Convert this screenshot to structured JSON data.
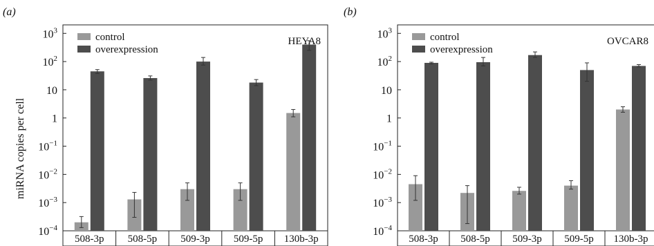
{
  "ylabel": "miRNA copies per cell",
  "colors": {
    "control": "#999999",
    "overexpression": "#4d4d4d",
    "axis": "#222222",
    "errorbar": "#333333"
  },
  "chart_data": [
    {
      "type": "bar",
      "panel_label": "(a)",
      "cell_line": "HEYA8",
      "title": "",
      "xlabel": "",
      "ylabel": "miRNA copies per cell",
      "yscale": "log",
      "ylim": [
        0.0001,
        2000
      ],
      "yticks": [
        {
          "value": 0.0001,
          "base": "10",
          "exp": "−4"
        },
        {
          "value": 0.001,
          "base": "10",
          "exp": "−3"
        },
        {
          "value": 0.01,
          "base": "10",
          "exp": "−2"
        },
        {
          "value": 0.1,
          "base": "10",
          "exp": "−1"
        },
        {
          "value": 1,
          "base": "1",
          "exp": ""
        },
        {
          "value": 10,
          "base": "10",
          "exp": ""
        },
        {
          "value": 100,
          "base": "10",
          "exp": "2"
        },
        {
          "value": 1000,
          "base": "10",
          "exp": "3"
        }
      ],
      "legend_position": "top-left",
      "categories": [
        "508-3p",
        "508-5p",
        "509-3p",
        "509-5p",
        "130b-3p"
      ],
      "series": [
        {
          "name": "control",
          "color": "#999999",
          "values": [
            0.0002,
            0.0013,
            0.003,
            0.003,
            1.5
          ],
          "err_low": [
            0.00013,
            0.0003,
            0.0012,
            0.0012,
            1.1
          ],
          "err_high": [
            0.00032,
            0.0023,
            0.005,
            0.005,
            2.0
          ]
        },
        {
          "name": "overexpression",
          "color": "#4d4d4d",
          "values": [
            45,
            26,
            100,
            18,
            400
          ],
          "err_low": [
            38,
            22,
            75,
            14,
            250
          ],
          "err_high": [
            52,
            31,
            140,
            23,
            550
          ]
        }
      ]
    },
    {
      "type": "bar",
      "panel_label": "(b)",
      "cell_line": "OVCAR8",
      "title": "",
      "xlabel": "",
      "ylabel": "",
      "yscale": "log",
      "ylim": [
        0.0001,
        2000
      ],
      "yticks": [
        {
          "value": 0.0001,
          "base": "10",
          "exp": "−4"
        },
        {
          "value": 0.001,
          "base": "10",
          "exp": "−3"
        },
        {
          "value": 0.01,
          "base": "10",
          "exp": "−2"
        },
        {
          "value": 0.1,
          "base": "10",
          "exp": "−1"
        },
        {
          "value": 1,
          "base": "1",
          "exp": ""
        },
        {
          "value": 10,
          "base": "10",
          "exp": ""
        },
        {
          "value": 100,
          "base": "10",
          "exp": "2"
        },
        {
          "value": 1000,
          "base": "10",
          "exp": "3"
        }
      ],
      "legend_position": "top-left",
      "categories": [
        "508-3p",
        "508-5p",
        "509-3p",
        "509-5p",
        "130b-3p"
      ],
      "series": [
        {
          "name": "control",
          "color": "#999999",
          "values": [
            0.0045,
            0.0022,
            0.0026,
            0.004,
            2.0
          ],
          "err_low": [
            0.0012,
            0.00018,
            0.002,
            0.003,
            1.6
          ],
          "err_high": [
            0.009,
            0.004,
            0.0035,
            0.006,
            2.5
          ]
        },
        {
          "name": "overexpression",
          "color": "#4d4d4d",
          "values": [
            90,
            95,
            170,
            50,
            70
          ],
          "err_low": [
            82,
            70,
            140,
            20,
            65
          ],
          "err_high": [
            95,
            140,
            220,
            90,
            78
          ]
        }
      ]
    }
  ]
}
